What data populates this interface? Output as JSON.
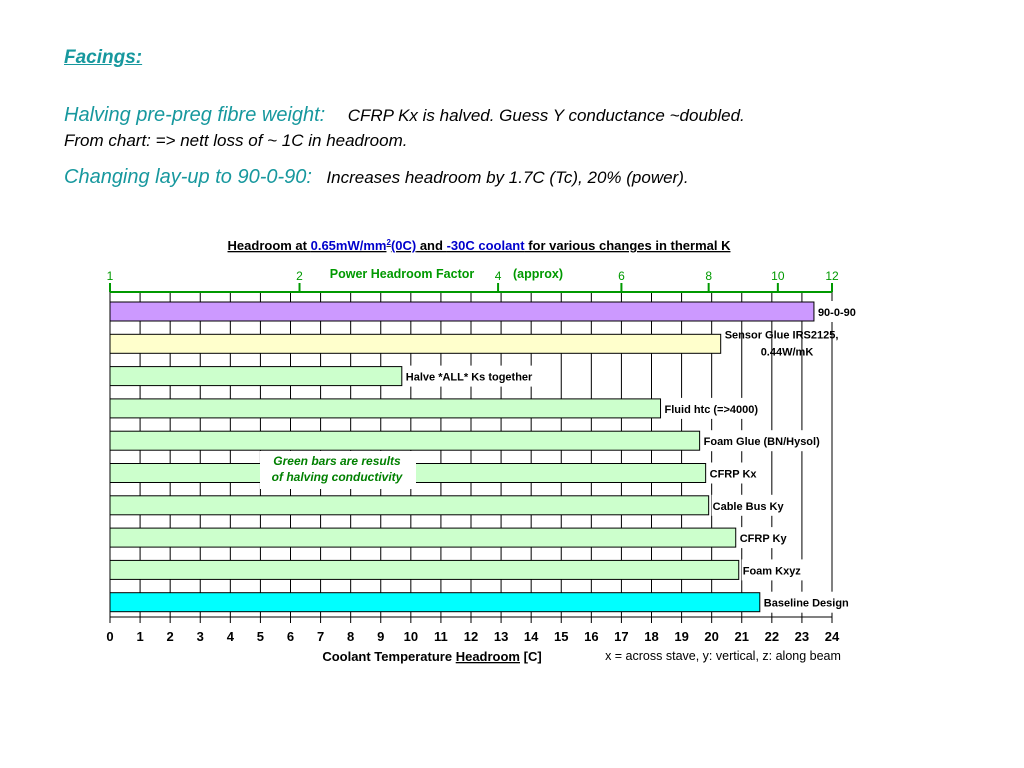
{
  "text": {
    "heading": "Facings:",
    "line1_label": "Halving pre-preg fibre weight:",
    "line1_text": "CFRP Kx is halved.  Guess Y conductance ~doubled.",
    "line2_text": "From chart:  => nett loss of ~ 1C in headroom.",
    "line3_label": "Changing lay-up to 90-0-90:",
    "line3_text": "Increases headroom by 1.7C (Tc),  20% (power)."
  },
  "colors": {
    "accent_text": "#17989e",
    "green_bar": "#ccffcc",
    "purple_bar": "#cc99ff",
    "yellow_bar": "#ffffcc",
    "cyan_bar": "#00ffff",
    "top_axis": "#009900",
    "blue_title": "#0000cc",
    "annotation": "#008000"
  },
  "chart_data": {
    "type": "bar",
    "orientation": "horizontal",
    "title": {
      "p1": "Headroom at ",
      "p2": "0.65mW/mm",
      "p2sup": "2",
      "p3": "(0C)",
      "p4": " and ",
      "p5": "-30C coolant",
      "p6": " for various changes in thermal K"
    },
    "xlabel": {
      "p1": "Coolant Temperature ",
      "p2": "Headroom",
      "p3": " [C]"
    },
    "x_note": "x = across stave, y: vertical, z: along beam",
    "xlim": [
      0,
      24
    ],
    "x_ticks": [
      0,
      1,
      2,
      3,
      4,
      5,
      6,
      7,
      8,
      9,
      10,
      11,
      12,
      13,
      14,
      15,
      16,
      17,
      18,
      19,
      20,
      21,
      22,
      23,
      24
    ],
    "grid": true,
    "top_axis": {
      "label": "Power Headroom Factor",
      "label2": "(approx)",
      "ticks": [
        {
          "label": "1",
          "at": 0
        },
        {
          "label": "2",
          "at": 6.3
        },
        {
          "label": "4",
          "at": 12.9
        },
        {
          "label": "6",
          "at": 17
        },
        {
          "label": "8",
          "at": 19.9
        },
        {
          "label": "10",
          "at": 22.2
        },
        {
          "label": "12",
          "at": 24
        }
      ]
    },
    "bars": [
      {
        "label": "90-0-90",
        "value": 23.4,
        "color": "purple"
      },
      {
        "label": "Sensor Glue IRS2125,",
        "label2": "0.44W/mK",
        "value": 20.3,
        "color": "yellow"
      },
      {
        "label": "Halve *ALL* Ks together",
        "value": 9.7,
        "color": "green"
      },
      {
        "label": "Fluid htc (=>4000)",
        "value": 18.3,
        "color": "green"
      },
      {
        "label": "Foam Glue (BN/Hysol)",
        "value": 19.6,
        "color": "green"
      },
      {
        "label": "CFRP Kx",
        "value": 19.8,
        "color": "green"
      },
      {
        "label": "Cable Bus Ky",
        "value": 19.9,
        "color": "green"
      },
      {
        "label": "CFRP Ky",
        "value": 20.8,
        "color": "green"
      },
      {
        "label": "Foam Kxyz",
        "value": 20.9,
        "color": "green"
      },
      {
        "label": "Baseline Design",
        "value": 21.6,
        "color": "cyan"
      }
    ],
    "annotation": {
      "line1": "Green bars are results",
      "line2": "of halving  conductivity"
    }
  }
}
